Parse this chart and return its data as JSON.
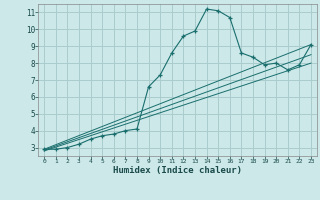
{
  "xlabel": "Humidex (Indice chaleur)",
  "ylabel": "",
  "background_color": "#cce8e8",
  "grid_color": "#aacccc",
  "line_color": "#1a6e6e",
  "xlim": [
    -0.5,
    23.5
  ],
  "ylim": [
    2.5,
    11.5
  ],
  "xticks": [
    0,
    1,
    2,
    3,
    4,
    5,
    6,
    7,
    8,
    9,
    10,
    11,
    12,
    13,
    14,
    15,
    16,
    17,
    18,
    19,
    20,
    21,
    22,
    23
  ],
  "yticks": [
    3,
    4,
    5,
    6,
    7,
    8,
    9,
    10,
    11
  ],
  "main_series_x": [
    0,
    1,
    2,
    3,
    4,
    5,
    6,
    7,
    8,
    9,
    10,
    11,
    12,
    13,
    14,
    15,
    16,
    17,
    18,
    19,
    20,
    21,
    22,
    23
  ],
  "main_series_y": [
    2.9,
    2.9,
    3.0,
    3.2,
    3.5,
    3.7,
    3.8,
    4.0,
    4.1,
    6.6,
    7.3,
    8.6,
    9.6,
    9.9,
    11.2,
    11.1,
    10.7,
    8.6,
    8.35,
    7.9,
    8.0,
    7.6,
    7.9,
    9.1
  ],
  "line2_x": [
    0,
    23
  ],
  "line2_y": [
    2.9,
    9.1
  ],
  "line3_x": [
    0,
    23
  ],
  "line3_y": [
    2.85,
    8.5
  ],
  "line4_x": [
    0,
    23
  ],
  "line4_y": [
    2.8,
    8.0
  ]
}
